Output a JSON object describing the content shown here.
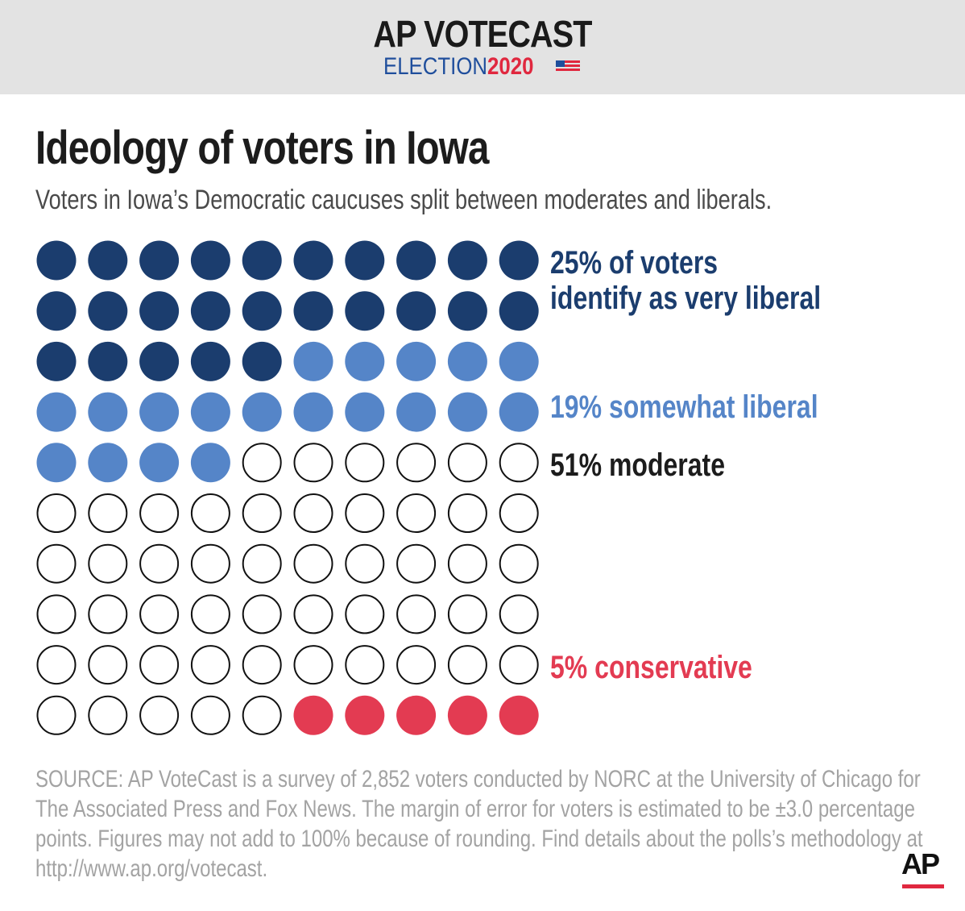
{
  "header": {
    "title": "AP VOTECAST",
    "election": "ELECTION",
    "year": "2020"
  },
  "title": "Ideology of voters in Iowa",
  "subtitle": "Voters in Iowa’s Democratic caucuses split between moderates and liberals.",
  "chart_data": {
    "type": "waffle",
    "grid": {
      "rows": 10,
      "columns": 10
    },
    "categories": [
      {
        "name": "very liberal",
        "value": 25,
        "color": "#1b3d6e",
        "filled": true,
        "label": "25% of voters identify as very liberal",
        "label_lines": [
          "25% of voters",
          "identify as very liberal"
        ]
      },
      {
        "name": "somewhat liberal",
        "value": 19,
        "color": "#5585c8",
        "filled": true,
        "label": "19% somewhat liberal"
      },
      {
        "name": "moderate",
        "value": 51,
        "color": "#1c1c1c",
        "filled": false,
        "label": "51% moderate"
      },
      {
        "name": "conservative",
        "value": 5,
        "color": "#e33b52",
        "filled": true,
        "label": "5% conservative"
      }
    ]
  },
  "source": "SOURCE: AP VoteCast is a survey of 2,852 voters conducted by NORC at the University of Chicago for The Associated Press and Fox News. The margin of error for voters is estimated to be ±3.0 percentage points. Figures may not add to 100% because of rounding. Find details about the polls’s methodology at http://www.ap.org/votecast.",
  "logo": "AP",
  "colors": {
    "header_bg": "#e3e3e3",
    "ap_red": "#e0283f",
    "ap_blue": "#1f4e9c"
  }
}
